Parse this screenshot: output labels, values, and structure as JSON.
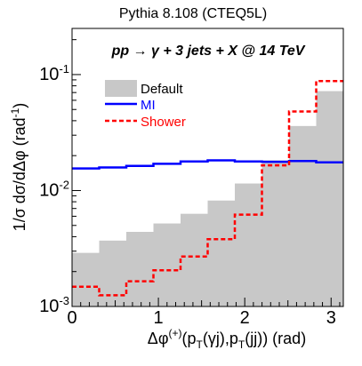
{
  "chart_data": {
    "type": "histogram",
    "title": "Pythia 8.108 (CTEQ5L)",
    "annotation": "pp → γ + 3 jets + X @ 14 TeV",
    "xlabel": "Δφ(+)(pT(γj),pT(jj)) (rad)",
    "xlabel_parts": {
      "pre": "Δφ",
      "sup": "(+)",
      "a": "(p",
      "sub1": "T",
      "b": "(γj),p",
      "sub2": "T",
      "c": "(jj)) (rad)"
    },
    "ylabel": "1/σ dσ/dΔφ (rad-1)",
    "ylabel_parts": {
      "main": "1/σ dσ/dΔφ (rad",
      "sup": "-1",
      "close": ")"
    },
    "xlim": [
      0,
      3.1416
    ],
    "ylim": [
      0.001,
      0.25
    ],
    "yscale": "log",
    "grid": false,
    "legend_position": "top-left",
    "x_ticks": [
      "0",
      "1",
      "2",
      "3"
    ],
    "y_ticks": [
      {
        "base": "10",
        "exp": "-3",
        "value": 0.001
      },
      {
        "base": "10",
        "exp": "-2",
        "value": 0.01
      },
      {
        "base": "10",
        "exp": "-1",
        "value": 0.1
      }
    ],
    "bin_edges": [
      0,
      0.31416,
      0.62832,
      0.94248,
      1.25664,
      1.5708,
      1.88496,
      2.19912,
      2.51328,
      2.82744,
      3.1416
    ],
    "series": [
      {
        "name": "Default",
        "style": "filled",
        "color": "#c8c8c8",
        "values": [
          0.0029,
          0.0037,
          0.0044,
          0.0052,
          0.0063,
          0.0082,
          0.0115,
          0.0182,
          0.036,
          0.072
        ]
      },
      {
        "name": "MI",
        "style": "line",
        "color": "#0000ff",
        "values": [
          0.0155,
          0.0158,
          0.0163,
          0.017,
          0.0178,
          0.0182,
          0.0178,
          0.0177,
          0.018,
          0.0175
        ]
      },
      {
        "name": "Shower",
        "style": "dashed",
        "color": "#ff0000",
        "values": [
          0.00148,
          0.00125,
          0.00165,
          0.00205,
          0.0027,
          0.0038,
          0.0062,
          0.0165,
          0.048,
          0.088
        ]
      }
    ]
  }
}
